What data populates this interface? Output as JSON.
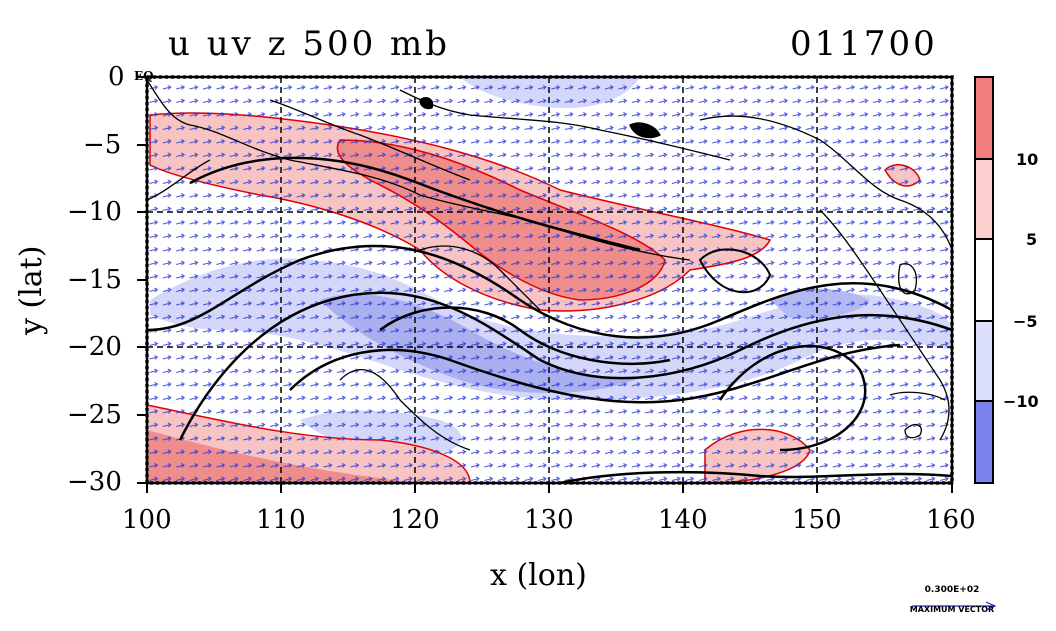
{
  "header": {
    "title_left": "u uv z 500 mb",
    "title_right": "011700"
  },
  "axes": {
    "xlabel": "x (lon)",
    "ylabel": "y (lat)",
    "x_ticks": [
      "100",
      "110",
      "120",
      "130",
      "140",
      "150",
      "160"
    ],
    "y_ticks": [
      "0",
      "−5",
      "−10",
      "−15",
      "−20",
      "−25",
      "−30"
    ],
    "eq_label": "EQ",
    "xlim": [
      100,
      160
    ],
    "ylim": [
      -30,
      0
    ]
  },
  "colorbar": {
    "labels": [
      "10",
      "5",
      "−5",
      "−10"
    ],
    "levels": [
      -15,
      -10,
      -5,
      5,
      10,
      15
    ],
    "colors": [
      "#7b82ee",
      "#dde0fb",
      "#ffffff",
      "#fccfcf",
      "#f07e7e"
    ]
  },
  "vector_legend": {
    "value": "0.300E+02",
    "label": "MAXIMUM VECTOR"
  },
  "map_colors": {
    "positive_fill": "#f5b8b8",
    "strong_positive_fill": "#ee7f7f",
    "negative_fill": "#c6cbf6",
    "strong_negative_fill": "#a3aaf0",
    "positive_contour": "#e00000",
    "vector": "#1a2ad6",
    "coast": "#000000"
  }
}
